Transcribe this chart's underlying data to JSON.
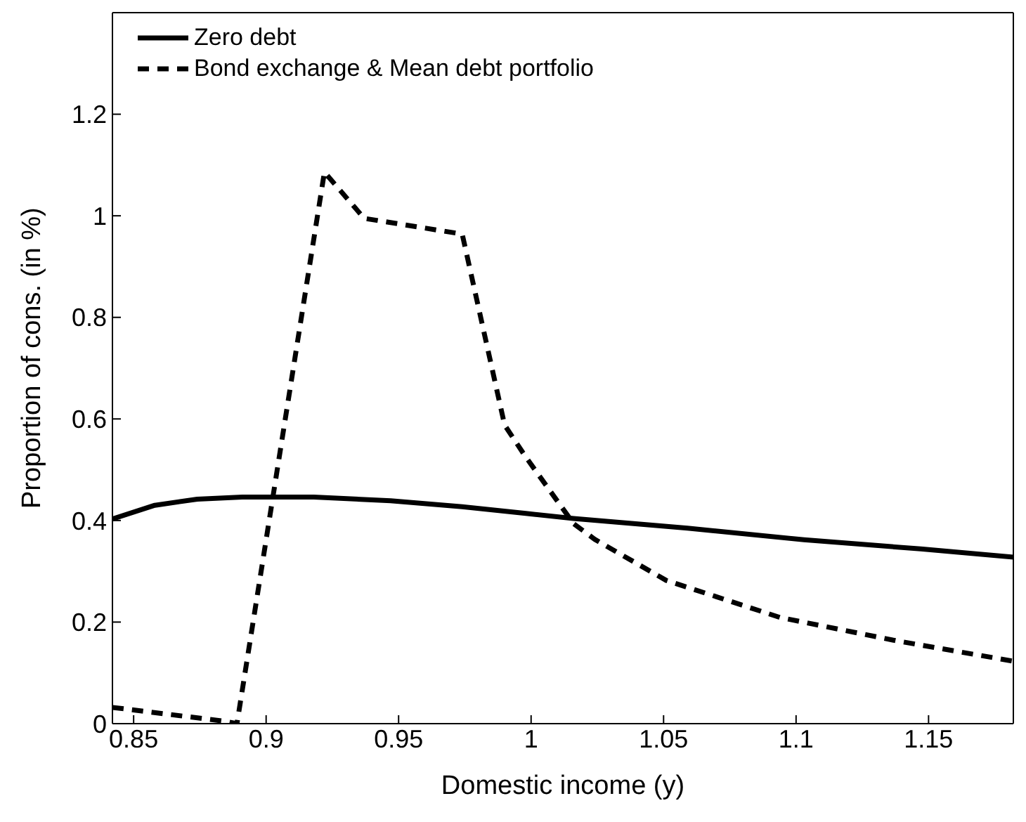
{
  "chart_data": {
    "type": "line",
    "xlabel": "Domestic income (y)",
    "ylabel": "Proportion of cons. (in %)",
    "xlim": [
      0.842,
      1.182
    ],
    "xticks": [
      0.85,
      0.9,
      0.95,
      1,
      1.05,
      1.1,
      1.15
    ],
    "ylim": [
      0,
      1.4
    ],
    "yticks": [
      0,
      0.2,
      0.4,
      0.6,
      0.8,
      1,
      1.2
    ],
    "legend": "top left",
    "marker": "none",
    "series": [
      {
        "name": "Zero debt",
        "color": "#000000",
        "line_style": "solid",
        "x": [
          0.842,
          0.858,
          0.874,
          0.891,
          0.918,
          0.947,
          0.974,
          0.998,
          1.016,
          1.059,
          1.103,
          1.147,
          1.182
        ],
        "values": [
          0.403,
          0.43,
          0.442,
          0.446,
          0.446,
          0.439,
          0.427,
          0.414,
          0.404,
          0.385,
          0.362,
          0.344,
          0.328
        ]
      },
      {
        "name": "Bond exchange & Mean debt portfolio",
        "color": "#000000",
        "line_style": "dashed",
        "x": [
          0.842,
          0.884,
          0.889,
          0.922,
          0.937,
          0.974,
          0.99,
          0.998,
          1.016,
          1.024,
          1.051,
          1.094,
          1.138,
          1.182
        ],
        "values": [
          0.032,
          0.005,
          0.0,
          1.086,
          0.995,
          0.964,
          0.588,
          0.525,
          0.394,
          0.363,
          0.282,
          0.209,
          0.163,
          0.123
        ]
      }
    ]
  }
}
